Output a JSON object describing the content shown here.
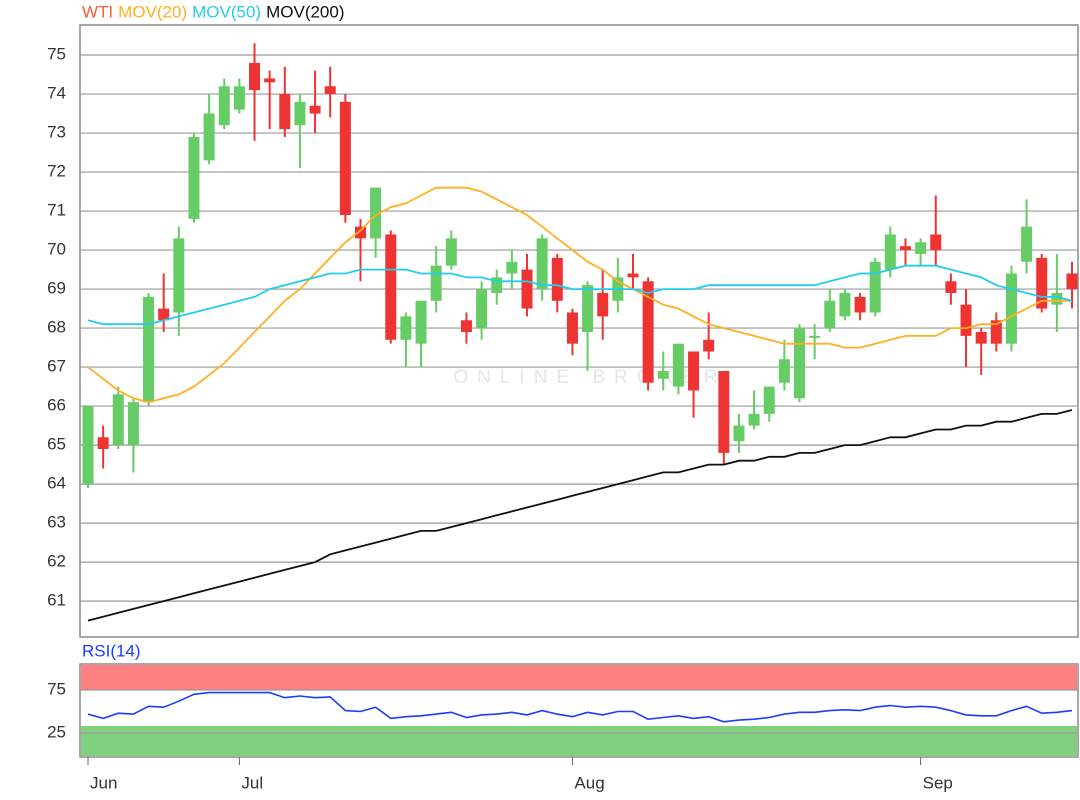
{
  "chart_data": [
    {
      "type": "candlestick",
      "watermark": "ONLINE BROKER",
      "categories": [
        "Jun",
        null,
        null,
        null,
        null,
        null,
        null,
        null,
        null,
        null,
        "Jul",
        null,
        null,
        null,
        null,
        null,
        null,
        null,
        null,
        null,
        null,
        null,
        null,
        null,
        null,
        null,
        null,
        null,
        null,
        null,
        null,
        null,
        "Aug",
        null,
        null,
        null,
        null,
        null,
        null,
        null,
        null,
        null,
        null,
        null,
        null,
        null,
        null,
        null,
        null,
        null,
        null,
        null,
        null,
        null,
        null,
        "Sep",
        null,
        null,
        null,
        null,
        null,
        null,
        null,
        null,
        null,
        null
      ],
      "series": [
        {
          "name": "WTI",
          "color": "#ff5a36",
          "up_color": "#66cc66",
          "down_color": "#ee3333",
          "open": [
            64.0,
            65.2,
            65.0,
            65.0,
            66.1,
            68.5,
            68.4,
            70.8,
            72.3,
            73.2,
            73.6,
            74.8,
            74.4,
            74.0,
            73.2,
            73.7,
            74.2,
            73.8,
            70.6,
            70.3,
            70.4,
            67.7,
            67.6,
            68.7,
            69.6,
            68.2,
            68.0,
            68.9,
            69.4,
            69.5,
            69.0,
            69.8,
            68.4,
            67.9,
            68.9,
            68.7,
            69.4,
            69.2,
            66.7,
            66.5,
            67.4,
            67.7,
            66.9,
            65.1,
            65.5,
            65.8,
            66.6,
            66.2,
            67.75,
            68.0,
            68.3,
            68.8,
            68.4,
            69.5,
            70.1,
            69.9,
            70.4,
            69.2,
            68.6,
            67.9,
            68.2,
            67.6,
            69.7,
            69.8,
            68.6,
            69.4
          ],
          "high": [
            66.0,
            65.5,
            66.5,
            66.2,
            68.9,
            69.4,
            70.6,
            73.0,
            74.0,
            74.4,
            74.4,
            75.3,
            74.6,
            74.7,
            74.0,
            74.6,
            74.7,
            74.0,
            70.8,
            71.6,
            70.5,
            68.4,
            68.7,
            70.1,
            70.5,
            68.4,
            69.2,
            69.5,
            70.0,
            69.9,
            70.4,
            69.9,
            68.5,
            69.2,
            69.5,
            69.8,
            69.9,
            69.3,
            67.4,
            67.6,
            67.4,
            68.4,
            66.9,
            65.8,
            66.4,
            66.5,
            67.7,
            68.1,
            68.1,
            69.0,
            69.0,
            68.9,
            69.8,
            70.6,
            70.3,
            70.3,
            71.4,
            69.4,
            69.0,
            68.0,
            68.4,
            69.6,
            71.3,
            69.9,
            69.9,
            69.7
          ],
          "low": [
            63.9,
            64.4,
            64.9,
            64.3,
            66.0,
            67.9,
            67.8,
            70.7,
            72.2,
            73.1,
            73.5,
            72.8,
            73.1,
            72.9,
            72.1,
            73.0,
            73.4,
            70.7,
            69.2,
            69.8,
            67.6,
            67.0,
            67.0,
            68.4,
            69.5,
            67.6,
            67.7,
            68.6,
            69.0,
            68.3,
            68.7,
            68.4,
            67.3,
            66.9,
            67.7,
            68.4,
            69.0,
            66.4,
            66.4,
            66.3,
            65.7,
            67.2,
            64.5,
            64.8,
            65.4,
            65.6,
            66.4,
            66.1,
            67.2,
            67.9,
            68.2,
            68.2,
            68.3,
            69.3,
            69.6,
            69.6,
            69.6,
            68.6,
            67.0,
            66.8,
            67.4,
            67.4,
            69.4,
            68.4,
            67.9,
            68.5
          ],
          "close": [
            66.0,
            64.9,
            66.3,
            66.1,
            68.8,
            68.2,
            70.3,
            72.9,
            73.5,
            74.2,
            74.2,
            74.1,
            74.3,
            73.1,
            73.8,
            73.5,
            74.0,
            70.9,
            70.3,
            71.6,
            67.7,
            68.3,
            68.7,
            69.6,
            70.3,
            67.9,
            69.0,
            69.3,
            69.7,
            68.5,
            70.3,
            68.7,
            67.6,
            69.1,
            68.3,
            69.3,
            69.3,
            66.6,
            66.9,
            67.6,
            66.4,
            67.4,
            64.8,
            65.5,
            65.8,
            66.5,
            67.2,
            68.0,
            67.8,
            68.7,
            68.9,
            68.4,
            69.7,
            70.4,
            70.0,
            70.2,
            70.0,
            68.9,
            67.8,
            67.6,
            67.6,
            69.4,
            70.6,
            68.5,
            68.9,
            69.0
          ]
        },
        {
          "name": "MOV(20)",
          "type": "line",
          "color": "#ffb020",
          "values": [
            67.0,
            66.7,
            66.4,
            66.2,
            66.1,
            66.2,
            66.3,
            66.5,
            66.8,
            67.1,
            67.5,
            67.9,
            68.3,
            68.7,
            69.0,
            69.4,
            69.8,
            70.2,
            70.5,
            70.9,
            71.1,
            71.2,
            71.4,
            71.6,
            71.6,
            71.6,
            71.5,
            71.3,
            71.1,
            70.9,
            70.6,
            70.3,
            70.0,
            69.7,
            69.5,
            69.2,
            69.0,
            68.8,
            68.6,
            68.5,
            68.3,
            68.1,
            68.0,
            67.9,
            67.8,
            67.7,
            67.6,
            67.6,
            67.6,
            67.6,
            67.5,
            67.5,
            67.6,
            67.7,
            67.8,
            67.8,
            67.8,
            68.0,
            68.0,
            68.1,
            68.1,
            68.3,
            68.5,
            68.7,
            68.7,
            68.7
          ]
        },
        {
          "name": "MOV(50)",
          "type": "line",
          "color": "#22ccee",
          "values": [
            68.2,
            68.1,
            68.1,
            68.1,
            68.1,
            68.2,
            68.3,
            68.4,
            68.5,
            68.6,
            68.7,
            68.8,
            69.0,
            69.1,
            69.2,
            69.3,
            69.4,
            69.4,
            69.5,
            69.5,
            69.5,
            69.5,
            69.4,
            69.4,
            69.4,
            69.3,
            69.3,
            69.2,
            69.2,
            69.2,
            69.1,
            69.1,
            69.0,
            69.0,
            69.0,
            69.0,
            69.0,
            68.9,
            69.0,
            69.0,
            69.0,
            69.1,
            69.1,
            69.1,
            69.1,
            69.1,
            69.1,
            69.1,
            69.1,
            69.2,
            69.3,
            69.4,
            69.4,
            69.5,
            69.6,
            69.6,
            69.6,
            69.5,
            69.4,
            69.3,
            69.1,
            69.0,
            68.9,
            68.8,
            68.8,
            68.7
          ]
        },
        {
          "name": "MOV(200)",
          "type": "line",
          "color": "#111111",
          "values": [
            60.5,
            60.6,
            60.7,
            60.8,
            60.9,
            61.0,
            61.1,
            61.2,
            61.3,
            61.4,
            61.5,
            61.6,
            61.7,
            61.8,
            61.9,
            62.0,
            62.2,
            62.3,
            62.4,
            62.5,
            62.6,
            62.7,
            62.8,
            62.8,
            62.9,
            63.0,
            63.1,
            63.2,
            63.3,
            63.4,
            63.5,
            63.6,
            63.7,
            63.8,
            63.9,
            64.0,
            64.1,
            64.2,
            64.3,
            64.3,
            64.4,
            64.5,
            64.5,
            64.6,
            64.6,
            64.7,
            64.7,
            64.8,
            64.8,
            64.9,
            65.0,
            65.0,
            65.1,
            65.2,
            65.2,
            65.3,
            65.4,
            65.4,
            65.5,
            65.5,
            65.6,
            65.6,
            65.7,
            65.8,
            65.8,
            65.9
          ]
        }
      ],
      "ylim": [
        60.08,
        75.77
      ],
      "yticks": [
        61,
        62,
        63,
        64,
        65,
        66,
        67,
        68,
        69,
        70,
        71,
        72,
        73,
        74,
        75
      ],
      "grid": true
    },
    {
      "type": "line",
      "series": [
        {
          "name": "RSI(14)",
          "color": "#1a3cff",
          "values": [
            47,
            42,
            48,
            47,
            56,
            55,
            62,
            70,
            72,
            72,
            72,
            72,
            72,
            66,
            68,
            66,
            67,
            51,
            50,
            55,
            42,
            44,
            45,
            47,
            49,
            43,
            46,
            47,
            49,
            46,
            51,
            47,
            44,
            49,
            46,
            50,
            50,
            41,
            43,
            45,
            42,
            44,
            38,
            40,
            41,
            43,
            47,
            49,
            49,
            51,
            52,
            51,
            55,
            57,
            55,
            56,
            55,
            51,
            46,
            45,
            45,
            51,
            56,
            48,
            49,
            51
          ]
        }
      ],
      "overbought_color": "#ff8080",
      "oversold_color": "#80d080",
      "ylim": [
        -2.9,
        105.2
      ],
      "yticks": [
        25,
        75
      ],
      "grid": true
    }
  ]
}
